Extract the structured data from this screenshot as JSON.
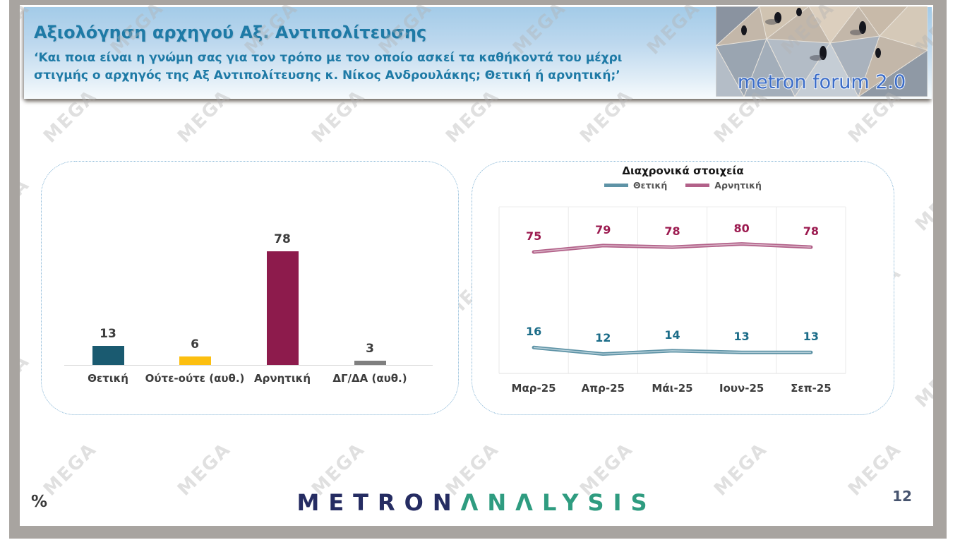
{
  "page": {
    "watermark": "MEGA",
    "percent_label": "%",
    "number": "12"
  },
  "header": {
    "title": "Αξιολόγηση αρχηγού Αξ. Αντιπολίτευσης",
    "subtitle_line1": "‘Και ποια είναι η γνώμη σας για τον τρόπο με τον οποίο ασκεί τα καθήκοντά του μέχρι",
    "subtitle_line2": "στιγμής ο αρχηγός της Αξ Αντιπολίτευσης κ. Νίκος Ανδρουλάκης; Θετική ή αρνητική;’",
    "logo_text": "metron forum 2.0"
  },
  "footer": {
    "brand_part1": "METRON",
    "brand_part2": "ΛNΛLYSIS"
  },
  "chart_data": [
    {
      "type": "bar",
      "title": "",
      "categories": [
        "Θετική",
        "Ούτε-ούτε (αυθ.)",
        "Αρνητική",
        "ΔΓ/ΔΑ (αυθ.)"
      ],
      "values": [
        13,
        6,
        78,
        3
      ],
      "colors": [
        "#1a5a70",
        "#fcbf10",
        "#8d1b4c",
        "#7f7f7f"
      ],
      "ylim": [
        0,
        100
      ],
      "grid": false,
      "data_labels": true
    },
    {
      "type": "line",
      "title": "Διαχρονικά στοιχεία",
      "categories": [
        "Μαρ-25",
        "Απρ-25",
        "Μάι-25",
        "Ιουν-25",
        "Σεπ-25"
      ],
      "series": [
        {
          "name": "Θετική",
          "values": [
            16,
            12,
            14,
            13,
            13
          ],
          "color": "#5e93a6",
          "inner_color": "#b5cfd9",
          "label_color": "#1b6c88"
        },
        {
          "name": "Αρνητική",
          "values": [
            75,
            79,
            78,
            80,
            78
          ],
          "color": "#b26189",
          "inner_color": "#d9b3c6",
          "label_color": "#9c1b50"
        }
      ],
      "ylim": [
        0,
        103
      ],
      "legend_position": "top",
      "grid": "vertical",
      "data_labels": true
    }
  ]
}
